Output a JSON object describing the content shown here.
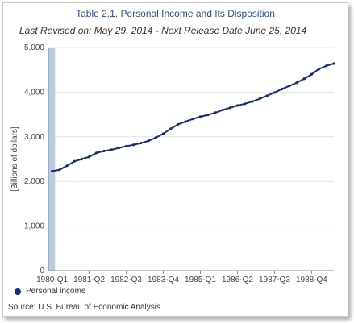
{
  "title": "Table 2.1. Personal Income and Its Disposition",
  "subtitle": "Last Revised on: May 29, 2014 - Next Release Date June 25, 2014",
  "source": "Source: U.S. Bureau of Economic Analysis",
  "colors": {
    "series": "#1a2a7a",
    "highlight": "#b8cde4",
    "grid": "#e2e2e2",
    "title": "#2d4b8e"
  },
  "chart_data": {
    "type": "line",
    "ylabel": "[Billions of dollars]",
    "xlabel": "",
    "ylim": [
      0,
      5000
    ],
    "yticks": [
      0,
      1000,
      2000,
      3000,
      4000,
      5000
    ],
    "ytick_labels": [
      "0",
      "1,000",
      "2,000",
      "3,000",
      "4,000",
      "5,000"
    ],
    "grid": true,
    "legend_position": "bottom-left",
    "x": [
      "1980-Q1",
      "1980-Q2",
      "1980-Q3",
      "1980-Q4",
      "1981-Q1",
      "1981-Q2",
      "1981-Q3",
      "1981-Q4",
      "1982-Q1",
      "1982-Q2",
      "1982-Q3",
      "1982-Q4",
      "1983-Q1",
      "1983-Q2",
      "1983-Q3",
      "1983-Q4",
      "1984-Q1",
      "1984-Q2",
      "1984-Q3",
      "1984-Q4",
      "1985-Q1",
      "1985-Q2",
      "1985-Q3",
      "1985-Q4",
      "1986-Q1",
      "1986-Q2",
      "1986-Q3",
      "1986-Q4",
      "1987-Q1",
      "1987-Q2",
      "1987-Q3",
      "1987-Q4",
      "1988-Q1",
      "1988-Q2",
      "1988-Q3",
      "1988-Q4",
      "1989-Q1",
      "1989-Q2",
      "1989-Q3"
    ],
    "xtick_labels": [
      "1980-Q1",
      "1981-Q2",
      "1982-Q3",
      "1983-Q4",
      "1985-Q1",
      "1986-Q2",
      "1987-Q3",
      "1988-Q4"
    ],
    "highlight_period": "1980-Q1",
    "series": [
      {
        "name": "Personal income",
        "values": [
          2230,
          2260,
          2350,
          2450,
          2500,
          2550,
          2640,
          2680,
          2710,
          2750,
          2790,
          2820,
          2860,
          2910,
          2980,
          3070,
          3180,
          3280,
          3340,
          3400,
          3450,
          3490,
          3540,
          3600,
          3650,
          3700,
          3740,
          3790,
          3850,
          3920,
          3990,
          4070,
          4140,
          4210,
          4300,
          4400,
          4520,
          4590,
          4640
        ]
      }
    ]
  }
}
